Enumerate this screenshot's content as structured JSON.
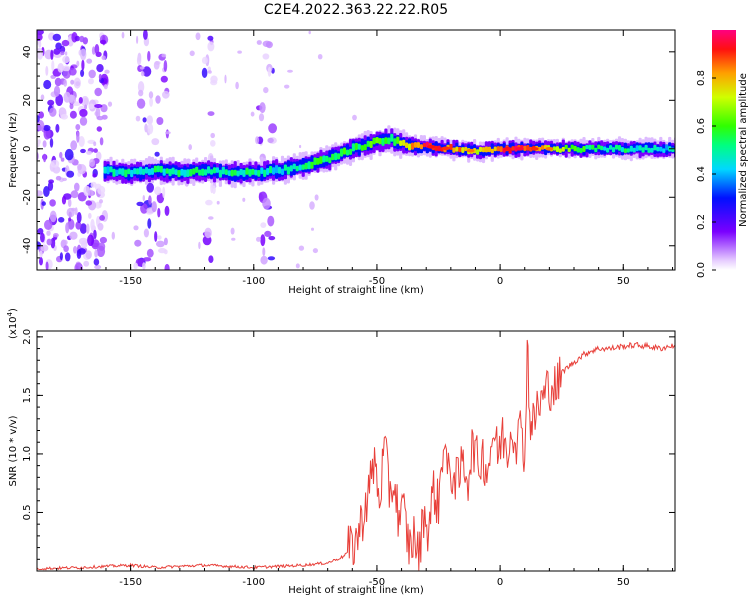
{
  "figure_title": "C2E4.2022.363.22.22.R05",
  "colorbar": {
    "label": "Normalized spectral amplitude",
    "ticks": [
      "0.0",
      "0.2",
      "0.4",
      "0.6",
      "0.8"
    ],
    "range": [
      0,
      1
    ]
  },
  "chart_data": [
    {
      "type": "heatmap",
      "title": "",
      "xlabel": "Height of straight line (km)",
      "ylabel": "Frequency (Hz)",
      "xlim": [
        -188,
        71
      ],
      "ylim": [
        -50,
        49
      ],
      "x_ticks": [
        -150,
        -100,
        -50,
        0,
        50
      ],
      "x_tick_labels": [
        "-150",
        "-100",
        "-50",
        "0",
        "50"
      ],
      "y_ticks": [
        -40,
        -20,
        0,
        20,
        40
      ],
      "y_tick_labels": [
        "-40",
        "-20",
        "0",
        "20",
        "40"
      ],
      "ridge": {
        "description_points_km": [
          -160,
          -150,
          -140,
          -130,
          -120,
          -110,
          -100,
          -90,
          -80,
          -70,
          -60,
          -50,
          -45,
          -40,
          -35,
          -30,
          -20,
          -10,
          0,
          10,
          20,
          30,
          40,
          50,
          60,
          70
        ],
        "frequency_hz": [
          -9,
          -10,
          -9,
          -10,
          -9,
          -10,
          -10,
          -9,
          -7,
          -4,
          0,
          3,
          4,
          2,
          1,
          1,
          0,
          -1,
          0,
          0,
          0,
          0,
          0,
          0,
          0,
          0
        ],
        "amplitude": [
          0.45,
          0.5,
          0.5,
          0.5,
          0.5,
          0.5,
          0.5,
          0.45,
          0.5,
          0.55,
          0.55,
          0.6,
          0.55,
          0.7,
          0.85,
          0.9,
          0.85,
          0.7,
          0.9,
          0.9,
          0.75,
          0.6,
          0.5,
          0.5,
          0.45,
          0.45
        ]
      },
      "noise_bands_km": [
        [
          -188,
          -160
        ],
        [
          -148,
          -135
        ],
        [
          -120,
          -116
        ],
        [
          -98,
          -92
        ]
      ]
    },
    {
      "type": "line",
      "title": "",
      "xlabel": "Height of straight line (km)",
      "ylabel": "SNR (10 * v/v)",
      "multiplier_label": "(x10",
      "multiplier_exp": "4",
      "multiplier_close": ")",
      "xlim": [
        -188,
        71
      ],
      "ylim": [
        0,
        2.05
      ],
      "x_ticks": [
        -150,
        -100,
        -50,
        0,
        50
      ],
      "x_tick_labels": [
        "-150",
        "-100",
        "-50",
        "0",
        "50"
      ],
      "y_ticks": [
        0.5,
        1.0,
        1.5,
        2.0
      ],
      "y_tick_labels": [
        "0.5",
        "1.0",
        "1.5",
        "2.0"
      ],
      "series": [
        {
          "name": "SNR",
          "color": "#e8403a",
          "x": [
            -188,
            -170,
            -150,
            -140,
            -130,
            -120,
            -110,
            -100,
            -90,
            -80,
            -70,
            -64,
            -60,
            -57,
            -55,
            -53,
            -51,
            -49,
            -47,
            -45,
            -43,
            -41,
            -39,
            -37,
            -35,
            -33,
            -31,
            -29,
            -27,
            -25,
            -23,
            -21,
            -19,
            -17,
            -15,
            -13,
            -11,
            -9,
            -7,
            -5,
            -3,
            -1,
            1,
            3,
            5,
            7,
            9,
            10,
            11,
            12,
            13,
            15,
            17,
            19,
            21,
            23,
            25,
            28,
            31,
            34,
            37,
            40,
            45,
            50,
            55,
            60,
            65,
            71
          ],
          "y": [
            0.02,
            0.03,
            0.05,
            0.03,
            0.04,
            0.05,
            0.04,
            0.03,
            0.04,
            0.05,
            0.07,
            0.12,
            0.2,
            0.35,
            0.55,
            0.7,
            0.95,
            0.6,
            1.05,
            0.7,
            0.75,
            0.45,
            0.5,
            0.2,
            0.3,
            0.1,
            0.5,
            0.35,
            0.7,
            0.55,
            1.15,
            0.8,
            0.85,
            0.75,
            0.95,
            0.8,
            1.1,
            0.9,
            1.0,
            0.85,
            1.2,
            1.0,
            1.15,
            1.05,
            1.25,
            1.1,
            1.3,
            0.85,
            2.0,
            1.35,
            1.2,
            1.4,
            1.45,
            1.55,
            1.6,
            1.55,
            1.7,
            1.75,
            1.8,
            1.85,
            1.88,
            1.9,
            1.9,
            1.92,
            1.93,
            1.92,
            1.9,
            1.93
          ]
        }
      ]
    }
  ]
}
